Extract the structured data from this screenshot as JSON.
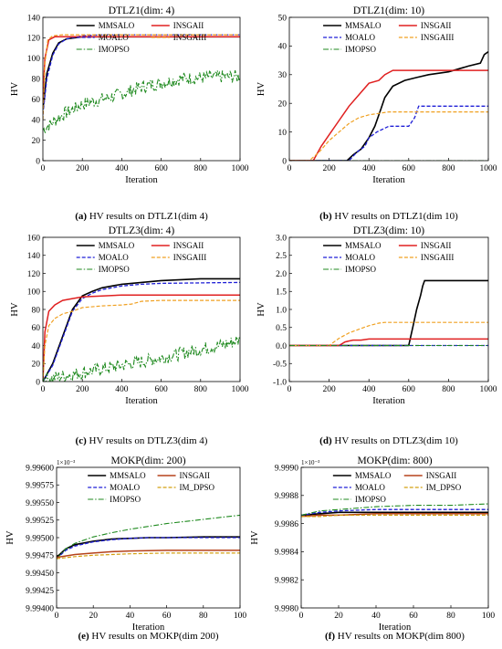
{
  "colors": {
    "MMSALO": "#000000",
    "MOALO": "#1f1fd6",
    "IMOPSO": "#1f8a1f",
    "INSGAII": "#e02020",
    "INSGAIII": "#f0a020",
    "IM_DPSO": "#d4a010",
    "INSGAII_mokp": "#b5421b"
  },
  "chart_data": [
    {
      "id": "a",
      "type": "line",
      "title": "DTLZ1(dim: 4)",
      "xlabel": "Iteration",
      "ylabel": "HV",
      "xlim": [
        0,
        1000
      ],
      "ylim": [
        0,
        140
      ],
      "xticks": [
        "0",
        "200",
        "400",
        "600",
        "800",
        "1000"
      ],
      "yticks": [
        "0",
        "20",
        "40",
        "60",
        "80",
        "100",
        "120",
        "140"
      ],
      "caption_bold": "(a)",
      "caption": " HV results on DTLZ1(dim 4)",
      "legend": [
        "MMSALO",
        "INSGAII",
        "MOALO",
        "INSGAIII",
        "IMOPSO"
      ],
      "series": [
        {
          "name": "MMSALO",
          "x": [
            0,
            20,
            50,
            80,
            120,
            200,
            300,
            500,
            1000
          ],
          "y": [
            50,
            85,
            105,
            115,
            119,
            121,
            121,
            121,
            121
          ]
        },
        {
          "name": "MOALO",
          "x": [
            0,
            20,
            50,
            80,
            120,
            200,
            300,
            500,
            1000
          ],
          "y": [
            45,
            80,
            103,
            114,
            119,
            122,
            123,
            123,
            123
          ]
        },
        {
          "name": "INSGAII",
          "x": [
            0,
            10,
            30,
            60,
            100,
            200,
            500,
            1000
          ],
          "y": [
            60,
            100,
            118,
            121,
            121,
            121,
            121,
            121
          ]
        },
        {
          "name": "INSGAIII",
          "x": [
            0,
            10,
            25,
            50,
            100,
            200,
            500,
            1000
          ],
          "y": [
            40,
            95,
            118,
            122,
            123,
            123,
            123,
            123
          ]
        },
        {
          "name": "IMOPSO",
          "noisy": true,
          "x": [
            0,
            100,
            200,
            300,
            400,
            500,
            600,
            700,
            800,
            900,
            1000
          ],
          "y": [
            30,
            45,
            55,
            60,
            65,
            72,
            76,
            80,
            81,
            82,
            82
          ]
        }
      ]
    },
    {
      "id": "b",
      "type": "line",
      "title": "DTLZ1(dim: 10)",
      "xlabel": "Iteration",
      "ylabel": "HV",
      "xlim": [
        0,
        1000
      ],
      "ylim": [
        0,
        50
      ],
      "xticks": [
        "0",
        "200",
        "400",
        "600",
        "800",
        "1000"
      ],
      "yticks": [
        "0",
        "10",
        "20",
        "30",
        "40",
        "50"
      ],
      "caption_bold": "(b)",
      "caption": " HV results on DTLZ1(dim 10)",
      "legend": [
        "MMSALO",
        "INSGAII",
        "MOALO",
        "INSGAIII",
        "IMOPSO"
      ],
      "series": [
        {
          "name": "MMSALO",
          "x": [
            0,
            290,
            320,
            360,
            400,
            430,
            460,
            480,
            520,
            580,
            640,
            700,
            800,
            900,
            960,
            980,
            1000
          ],
          "y": [
            0,
            0,
            2,
            4,
            8,
            12,
            18,
            22,
            26,
            28,
            29,
            30,
            31,
            33,
            34,
            37,
            38
          ]
        },
        {
          "name": "MOALO",
          "x": [
            0,
            300,
            340,
            380,
            400,
            440,
            500,
            600,
            630,
            650,
            1000
          ],
          "y": [
            0,
            0,
            3,
            5,
            8,
            10,
            12,
            12,
            15,
            19,
            19
          ]
        },
        {
          "name": "INSGAII",
          "x": [
            0,
            120,
            160,
            200,
            250,
            300,
            350,
            400,
            450,
            480,
            520,
            1000
          ],
          "y": [
            0,
            0,
            5,
            9,
            14,
            19,
            23,
            27,
            28,
            30,
            31.5,
            31.5
          ]
        },
        {
          "name": "INSGAIII",
          "x": [
            0,
            100,
            150,
            200,
            250,
            300,
            350,
            400,
            450,
            500,
            1000
          ],
          "y": [
            0,
            0,
            3,
            7,
            10,
            13,
            15,
            16,
            16.5,
            17,
            17
          ]
        },
        {
          "name": "IMOPSO",
          "x": [
            0,
            1000
          ],
          "y": [
            0,
            0
          ]
        }
      ]
    },
    {
      "id": "c",
      "type": "line",
      "title": "DTLZ3(dim: 4)",
      "xlabel": "Iteration",
      "ylabel": "HV",
      "xlim": [
        0,
        1000
      ],
      "ylim": [
        0,
        160
      ],
      "xticks": [
        "0",
        "200",
        "400",
        "600",
        "800",
        "1000"
      ],
      "yticks": [
        "0",
        "20",
        "40",
        "60",
        "80",
        "100",
        "120",
        "140",
        "160"
      ],
      "caption_bold": "(c)",
      "caption": " HV results on DTLZ3(dim 4)",
      "legend": [
        "MMSALO",
        "INSGAII",
        "MOALO",
        "INSGAIII",
        "IMOPSO"
      ],
      "series": [
        {
          "name": "MMSALO",
          "x": [
            0,
            50,
            100,
            150,
            200,
            250,
            300,
            400,
            500,
            600,
            700,
            800,
            1000
          ],
          "y": [
            0,
            20,
            50,
            80,
            95,
            100,
            104,
            108,
            110,
            112,
            113,
            114,
            114
          ]
        },
        {
          "name": "MOALO",
          "x": [
            0,
            50,
            100,
            150,
            200,
            250,
            300,
            400,
            500,
            600,
            1000
          ],
          "y": [
            0,
            18,
            48,
            78,
            92,
            98,
            102,
            106,
            108,
            109,
            110
          ]
        },
        {
          "name": "INSGAII",
          "x": [
            0,
            10,
            30,
            60,
            100,
            150,
            200,
            300,
            400,
            500,
            1000
          ],
          "y": [
            0,
            55,
            78,
            85,
            90,
            92,
            94,
            95,
            96,
            96,
            96
          ]
        },
        {
          "name": "INSGAIII",
          "x": [
            0,
            10,
            30,
            60,
            100,
            150,
            200,
            300,
            400,
            450,
            500,
            600,
            1000
          ],
          "y": [
            0,
            40,
            62,
            70,
            75,
            78,
            82,
            84,
            85,
            86,
            89,
            90,
            90
          ]
        },
        {
          "name": "IMOPSO",
          "noisy": true,
          "x": [
            0,
            100,
            200,
            300,
            400,
            500,
            600,
            700,
            800,
            900,
            1000
          ],
          "y": [
            2,
            6,
            10,
            14,
            18,
            22,
            26,
            31,
            36,
            40,
            46
          ]
        }
      ]
    },
    {
      "id": "d",
      "type": "line",
      "title": "DTLZ3(dim: 10)",
      "xlabel": "Iteration",
      "ylabel": "HV",
      "xlim": [
        0,
        1000
      ],
      "ylim": [
        -1.0,
        3.0
      ],
      "xticks": [
        "0",
        "200",
        "400",
        "600",
        "800",
        "1000"
      ],
      "yticks": [
        "-1.0",
        "-0.5",
        "0.0",
        "0.5",
        "1.0",
        "1.5",
        "2.0",
        "2.5",
        "3.0"
      ],
      "caption_bold": "(d)",
      "caption": " HV results on DTLZ3(dim 10)",
      "legend": [
        "MMSALO",
        "INSGAII",
        "MOALO",
        "INSGAIII",
        "IMOPSO"
      ],
      "series": [
        {
          "name": "MMSALO",
          "x": [
            0,
            600,
            620,
            640,
            660,
            670,
            680,
            1000
          ],
          "y": [
            0,
            0,
            0.5,
            1.0,
            1.4,
            1.65,
            1.8,
            1.8
          ]
        },
        {
          "name": "MOALO",
          "x": [
            0,
            1000
          ],
          "y": [
            0,
            0
          ]
        },
        {
          "name": "INSGAII",
          "x": [
            0,
            250,
            280,
            320,
            360,
            400,
            1000
          ],
          "y": [
            0,
            0,
            0.1,
            0.15,
            0.15,
            0.18,
            0.18
          ]
        },
        {
          "name": "INSGAIII",
          "x": [
            0,
            200,
            250,
            300,
            350,
            400,
            450,
            480,
            1000
          ],
          "y": [
            0,
            0,
            0.2,
            0.35,
            0.45,
            0.55,
            0.62,
            0.64,
            0.64
          ]
        },
        {
          "name": "IMOPSO",
          "x": [
            0,
            1000
          ],
          "y": [
            0,
            0
          ]
        }
      ]
    },
    {
      "id": "e",
      "type": "line",
      "title": "MOKP(dim: 200)",
      "xlabel": "Iteration",
      "ylabel": "HV",
      "xlim": [
        0,
        100
      ],
      "ylim": [
        9.994,
        9.996
      ],
      "exponent": "1×10⁻³",
      "xticks": [
        "0",
        "20",
        "40",
        "60",
        "80",
        "100"
      ],
      "yticks": [
        "9.99400",
        "9.99425",
        "9.99450",
        "9.99475",
        "9.99500",
        "9.99525",
        "9.99550",
        "9.99575",
        "9.99600"
      ],
      "caption_bold": "(e)",
      "caption": " HV results on MOKP(dim 200)",
      "legend": [
        "MMSALO",
        "INSGAII",
        "MOALO",
        "IM_DPSO",
        "IMOPSO"
      ],
      "series": [
        {
          "name": "MMSALO",
          "x": [
            0,
            5,
            10,
            20,
            30,
            40,
            50,
            60,
            80,
            100
          ],
          "y": [
            9.99472,
            9.99484,
            9.9949,
            9.99495,
            9.99498,
            9.99499,
            9.995,
            9.995,
            9.99501,
            9.99501
          ]
        },
        {
          "name": "MOALO",
          "x": [
            0,
            5,
            10,
            20,
            30,
            40,
            50,
            60,
            80,
            100
          ],
          "y": [
            9.9947,
            9.99482,
            9.99488,
            9.99494,
            9.99497,
            9.99499,
            9.995,
            9.995,
            9.995,
            9.995
          ]
        },
        {
          "name": "IMOPSO",
          "x": [
            0,
            5,
            10,
            20,
            30,
            40,
            50,
            60,
            70,
            80,
            90,
            100
          ],
          "y": [
            9.9947,
            9.99484,
            9.99492,
            9.99501,
            9.99507,
            9.99512,
            9.99516,
            9.9952,
            9.99523,
            9.99526,
            9.99529,
            9.99532
          ]
        },
        {
          "name": "INSGAII",
          "x": [
            0,
            10,
            20,
            30,
            40,
            60,
            80,
            100
          ],
          "y": [
            9.99472,
            9.99476,
            9.99478,
            9.9948,
            9.99481,
            9.99482,
            9.99482,
            9.99482
          ]
        },
        {
          "name": "IM_DPSO",
          "x": [
            0,
            10,
            20,
            30,
            40,
            60,
            80,
            100
          ],
          "y": [
            9.9947,
            9.99473,
            9.99475,
            9.99476,
            9.99477,
            9.99478,
            9.99478,
            9.99478
          ]
        }
      ]
    },
    {
      "id": "f",
      "type": "line",
      "title": "MOKP(dim: 800)",
      "xlabel": "Iteration",
      "ylabel": "HV",
      "xlim": [
        0,
        100
      ],
      "ylim": [
        9.998,
        9.999
      ],
      "exponent": "1×10⁻³",
      "xticks": [
        "0",
        "20",
        "40",
        "60",
        "80",
        "100"
      ],
      "yticks": [
        "9.9980",
        "9.9982",
        "9.9984",
        "9.9986",
        "9.9988",
        "9.9990"
      ],
      "caption_bold": "(f)",
      "caption": " HV results on MOKP(dim 800)",
      "legend": [
        "MMSALO",
        "INSGAII",
        "MOALO",
        "IM_DPSO",
        "IMOPSO"
      ],
      "series": [
        {
          "name": "MMSALO",
          "x": [
            0,
            10,
            20,
            40,
            60,
            80,
            100
          ],
          "y": [
            9.99866,
            9.99867,
            9.99868,
            9.99868,
            9.99868,
            9.99868,
            9.99868
          ]
        },
        {
          "name": "MOALO",
          "x": [
            0,
            10,
            20,
            40,
            60,
            80,
            100
          ],
          "y": [
            9.99866,
            9.99868,
            9.99869,
            9.9987,
            9.9987,
            9.9987,
            9.9987
          ]
        },
        {
          "name": "IMOPSO",
          "x": [
            0,
            10,
            20,
            40,
            60,
            80,
            100
          ],
          "y": [
            9.99866,
            9.99869,
            9.9987,
            9.99872,
            9.99873,
            9.99873,
            9.99874
          ]
        },
        {
          "name": "INSGAII",
          "x": [
            0,
            10,
            20,
            40,
            60,
            80,
            100
          ],
          "y": [
            9.99865,
            9.99866,
            9.99866,
            9.99867,
            9.99867,
            9.99867,
            9.99867
          ]
        },
        {
          "name": "IM_DPSO",
          "x": [
            0,
            10,
            20,
            40,
            60,
            80,
            100
          ],
          "y": [
            9.99865,
            9.99865,
            9.99866,
            9.99866,
            9.99866,
            9.99866,
            9.99866
          ]
        }
      ]
    }
  ]
}
